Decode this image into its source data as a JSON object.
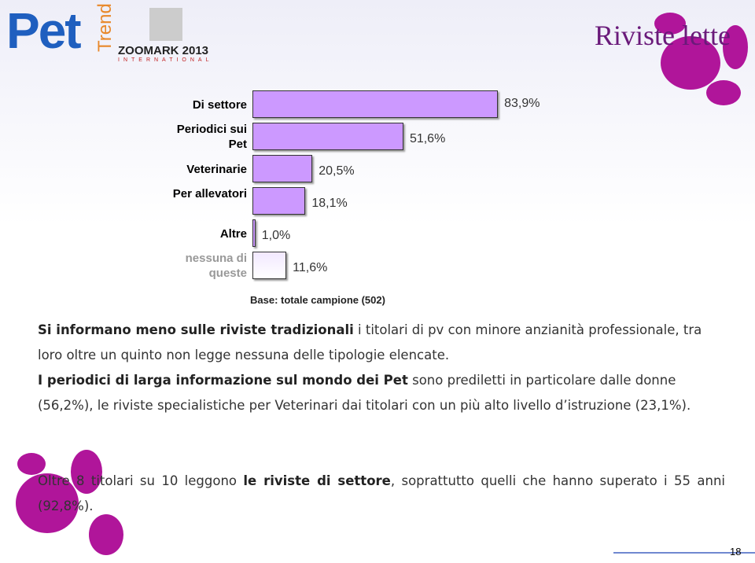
{
  "header": {
    "logo": "Pet",
    "logo_sub": "Trend",
    "event": "ZOOMARK 2013",
    "event_sub": "INTERNATIONAL",
    "section": "Riviste lette"
  },
  "chart_data": {
    "type": "bar",
    "orientation": "horizontal",
    "categories": [
      "Di settore",
      "Periodici sui Pet",
      "Veterinarie",
      "Per allevatori",
      "Altre",
      "nessuna di queste"
    ],
    "values": [
      83.9,
      51.6,
      20.5,
      18.1,
      1.0,
      11.6
    ],
    "value_labels": [
      "83,9%",
      "51,6%",
      "20,5%",
      "18,1%",
      "1,0%",
      "11,6%"
    ],
    "colors": [
      "#cc99ff",
      "#cc99ff",
      "#cc99ff",
      "#cc99ff",
      "#cc99ff",
      "#f2e8ff"
    ],
    "note": "Base: totale campione (502)"
  },
  "paragraphs": [
    [
      {
        "text": "Si informano meno sulle riviste tradizionali",
        "bold": true
      },
      {
        "text": " i titolari di pv con minore anzianità professionale, tra loro oltre un quinto non legge nessuna delle tipologie elencate.",
        "bold": false
      }
    ],
    [
      {
        "text": "I periodici di larga informazione sul mondo dei Pet",
        "bold": true
      },
      {
        "text": " sono prediletti in particolare dalle donne (56,2%), le riviste specialistiche per Veterinari dai titolari con un più alto livello d’istruzione (23,1%).",
        "bold": false
      }
    ],
    [
      {
        "text": "Oltre 8 titolari su 10 leggono ",
        "bold": false
      },
      {
        "text": "le riviste di settore",
        "bold": true
      },
      {
        "text": ", soprattutto quelli che hanno superato i 55 anni (92,8%).",
        "bold": false
      }
    ]
  ],
  "page_number": "18"
}
